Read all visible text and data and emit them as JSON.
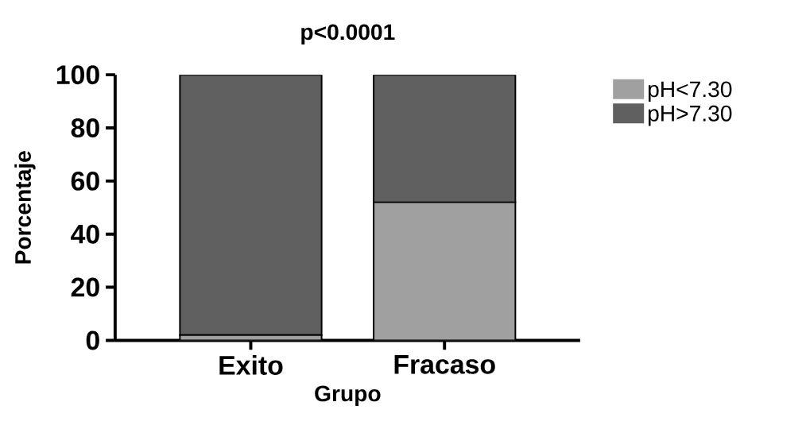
{
  "chart_data": {
    "type": "bar",
    "title": "p<0.0001",
    "xlabel": "Grupo",
    "ylabel": "Porcentaje",
    "categories": [
      "Exito",
      "Fracaso"
    ],
    "stacked": true,
    "series": [
      {
        "name": "pH<7.30",
        "color": "#a0a0a0",
        "values": [
          2,
          52
        ]
      },
      {
        "name": "pH>7.30",
        "color": "#606060",
        "values": [
          98,
          48
        ]
      }
    ],
    "ylim": [
      0,
      100
    ],
    "yticks": [
      0,
      20,
      40,
      60,
      80,
      100
    ],
    "grid": false,
    "legend": "top right"
  }
}
